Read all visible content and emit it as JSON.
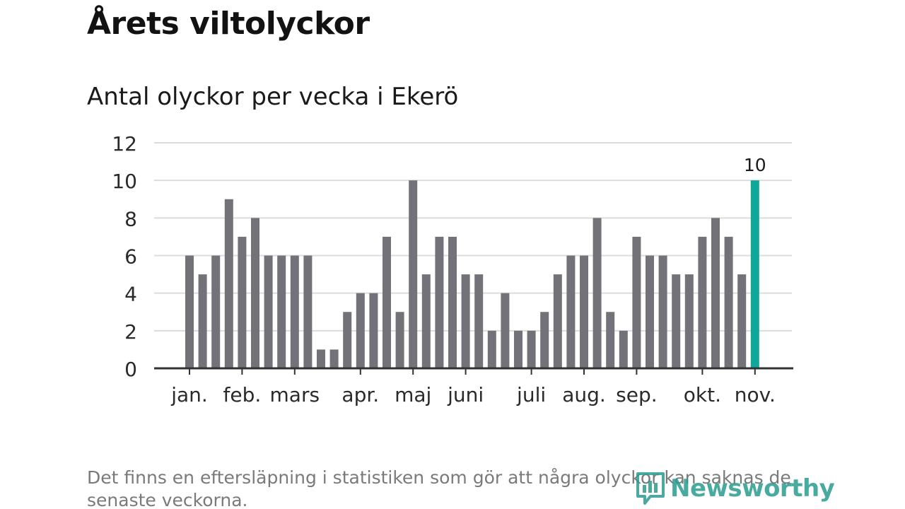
{
  "header": {
    "title": "Årets viltolyckor",
    "subtitle": "Antal olyckor per vecka i Ekerö"
  },
  "footer": {
    "note": "Det finns en eftersläpning i statistiken som gör att några olyckor kan saknas de senaste veckorna.",
    "logo_text": "Newsworthy"
  },
  "colors": {
    "bar": "#737278",
    "highlight": "#0ea799",
    "grid": "#dcdcdc",
    "axis": "#333333",
    "logo": "#2a9d8f"
  },
  "chart_data": {
    "type": "bar",
    "title": "Antal olyckor per vecka i Ekerö",
    "xlabel": "",
    "ylabel": "",
    "ylim": [
      0,
      12
    ],
    "yticks": [
      0,
      2,
      4,
      6,
      8,
      10,
      12
    ],
    "grid": true,
    "month_labels": [
      {
        "label": "jan.",
        "week": 1
      },
      {
        "label": "feb.",
        "week": 5
      },
      {
        "label": "mars",
        "week": 9
      },
      {
        "label": "apr.",
        "week": 14
      },
      {
        "label": "maj",
        "week": 18
      },
      {
        "label": "juni",
        "week": 22
      },
      {
        "label": "juli",
        "week": 27
      },
      {
        "label": "aug.",
        "week": 31
      },
      {
        "label": "sep.",
        "week": 35
      },
      {
        "label": "okt.",
        "week": 40
      },
      {
        "label": "nov.",
        "week": 44
      }
    ],
    "values": [
      6,
      5,
      6,
      9,
      7,
      8,
      6,
      6,
      6,
      6,
      1,
      1,
      3,
      4,
      4,
      7,
      3,
      10,
      5,
      7,
      7,
      5,
      5,
      2,
      4,
      2,
      2,
      3,
      5,
      6,
      6,
      8,
      3,
      2,
      7,
      6,
      6,
      5,
      5,
      7,
      8,
      7,
      5,
      10
    ],
    "highlight_index": 43,
    "highlight_label": "10"
  }
}
